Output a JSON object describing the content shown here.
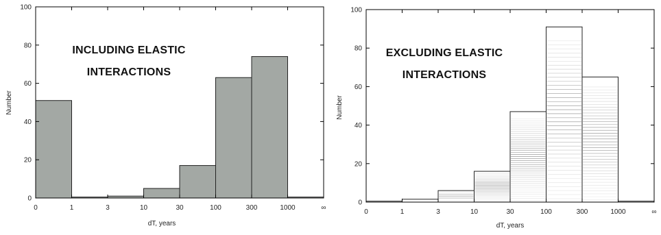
{
  "chart_data": [
    {
      "type": "bar",
      "title_lines": [
        "INCLUDING ELASTIC",
        "INTERACTIONS"
      ],
      "xlabel": "dT, years",
      "ylabel": "Number",
      "ylim": [
        0,
        100
      ],
      "yticks": [
        0,
        20,
        40,
        60,
        80,
        100
      ],
      "categories": [
        "0-1",
        "1-3",
        "3-10",
        "10-30",
        "30-100",
        "100-300",
        "300-1000",
        "1000-∞"
      ],
      "x_tick_labels": [
        "0",
        "1",
        "3",
        "10",
        "30",
        "100",
        "300",
        "1000",
        "∞"
      ],
      "values": [
        51,
        0.5,
        1,
        5,
        17,
        63,
        74,
        0.5
      ],
      "fill_color": "#a3a8a4",
      "edge_color": "#222222",
      "grid": false
    },
    {
      "type": "bar",
      "title_lines": [
        "EXCLUDING ELASTIC",
        "INTERACTIONS"
      ],
      "xlabel": "dT, years",
      "ylabel": "Number",
      "ylim": [
        0,
        100
      ],
      "yticks": [
        0,
        20,
        40,
        60,
        80,
        100
      ],
      "categories": [
        "0-1",
        "1-3",
        "3-10",
        "10-30",
        "30-100",
        "100-300",
        "300-1000",
        "1000-∞"
      ],
      "x_tick_labels": [
        "0",
        "1",
        "3",
        "10",
        "30",
        "100",
        "300",
        "1000",
        "∞"
      ],
      "values": [
        0.5,
        1.5,
        6,
        16,
        47,
        91,
        65,
        0.5
      ],
      "fill_color": "#ffffff",
      "edge_color": "#222222",
      "hatch_color": "#555555",
      "grid": false
    }
  ]
}
